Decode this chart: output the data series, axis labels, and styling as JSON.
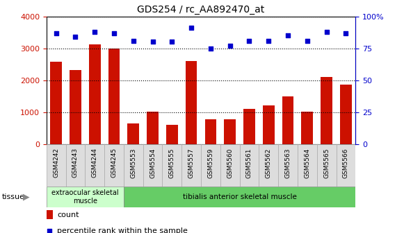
{
  "title": "GDS254 / rc_AA892470_at",
  "categories": [
    "GSM4242",
    "GSM4243",
    "GSM4244",
    "GSM4245",
    "GSM5553",
    "GSM5554",
    "GSM5555",
    "GSM5557",
    "GSM5559",
    "GSM5560",
    "GSM5561",
    "GSM5562",
    "GSM5563",
    "GSM5564",
    "GSM5565",
    "GSM5566"
  ],
  "counts": [
    2580,
    2320,
    3130,
    3000,
    650,
    1020,
    620,
    2600,
    780,
    780,
    1120,
    1220,
    1500,
    1020,
    2110,
    1870
  ],
  "percentiles": [
    87,
    84,
    88,
    87,
    81,
    80,
    80,
    91,
    75,
    77,
    81,
    81,
    85,
    81,
    88,
    87
  ],
  "bar_color": "#cc1100",
  "dot_color": "#0000cc",
  "ylim_left": [
    0,
    4000
  ],
  "ylim_right": [
    0,
    100
  ],
  "yticks_left": [
    0,
    1000,
    2000,
    3000,
    4000
  ],
  "yticks_right": [
    0,
    25,
    50,
    75,
    100
  ],
  "bg_color": "#ffffff",
  "xtick_bg": "#dddddd",
  "tissue_group1_label": "extraocular skeletal\nmuscle",
  "tissue_group1_count": 4,
  "tissue_group2_label": "tibialis anterior skeletal muscle",
  "tissue_group2_count": 12,
  "tissue_bg1": "#ccffcc",
  "tissue_bg2": "#66cc66",
  "tissue_label": "tissue",
  "legend_count_label": "count",
  "legend_pct_label": "percentile rank within the sample"
}
